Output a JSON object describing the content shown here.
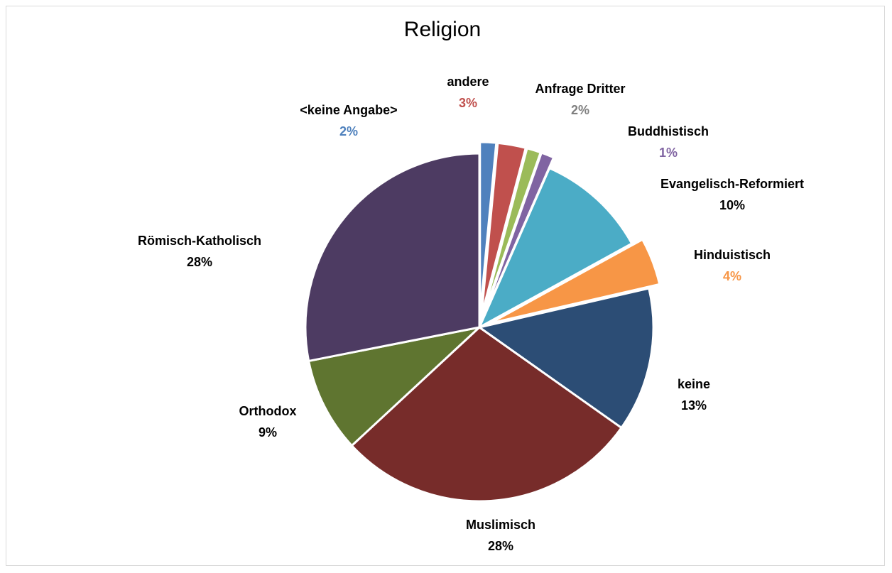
{
  "chart_data": {
    "type": "pie",
    "title": "Religion",
    "slices": [
      {
        "label": "<keine Angabe>",
        "percent_label": "2%",
        "value": 1.5,
        "color": "#4f81bd",
        "label_color": "#4f81bd",
        "exploded": true
      },
      {
        "label": "andere",
        "percent_label": "3%",
        "value": 2.6,
        "color": "#c0504d",
        "label_color": "#c0504d",
        "exploded": true
      },
      {
        "label": "Anfrage Dritter",
        "percent_label": "2%",
        "value": 1.3,
        "color": "#9bbb59",
        "label_color": "#7f7f7f",
        "exploded": true
      },
      {
        "label": "Buddhistisch",
        "percent_label": "1%",
        "value": 1.2,
        "color": "#8064a2",
        "label_color": "#8064a2",
        "exploded": true
      },
      {
        "label": "Evangelisch-Reformiert",
        "percent_label": "10%",
        "value": 10.4,
        "color": "#4bacc6",
        "label_color": "#000000",
        "exploded": false
      },
      {
        "label": "Hinduistisch",
        "percent_label": "4%",
        "value": 4.4,
        "color": "#f79646",
        "label_color": "#f79646",
        "exploded": true
      },
      {
        "label": "keine",
        "percent_label": "13%",
        "value": 13.4,
        "color": "#2c4d75",
        "label_color": "#000000",
        "exploded": false
      },
      {
        "label": "Muslimisch",
        "percent_label": "28%",
        "value": 28.3,
        "color": "#772c2a",
        "label_color": "#000000",
        "exploded": false
      },
      {
        "label": "Orthodox",
        "percent_label": "9%",
        "value": 8.8,
        "color": "#5f7530",
        "label_color": "#000000",
        "exploded": false
      },
      {
        "label": "Römisch-Katholisch",
        "percent_label": "28%",
        "value": 28.1,
        "color": "#4d3b62",
        "label_color": "#000000",
        "exploded": false
      }
    ]
  }
}
